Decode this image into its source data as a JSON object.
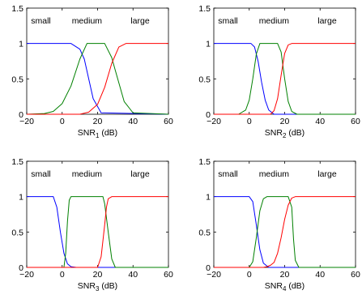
{
  "figure": {
    "background": "#ffffff",
    "curve_colors": {
      "small": "#0000ff",
      "medium": "#008000",
      "large": "#ff0000"
    }
  },
  "chart_data": [
    {
      "type": "line",
      "xlabel": {
        "base": "SNR",
        "sub": "1",
        "unit": " (dB)"
      },
      "ylabel": "",
      "xlim": [
        -20,
        60
      ],
      "ylim": [
        0,
        1.5
      ],
      "xticks": [
        -20,
        0,
        20,
        40,
        60
      ],
      "xtick_labels": [
        "−20",
        "0",
        "20",
        "40",
        "60"
      ],
      "yticks": [
        0,
        0.5,
        1,
        1.5
      ],
      "ytick_labels": [
        "0",
        "0.5",
        "1",
        "1.5"
      ],
      "grid": false,
      "class_labels": [
        {
          "text": "small",
          "x": -12
        },
        {
          "text": "medium",
          "x": 14
        },
        {
          "text": "large",
          "x": 44
        }
      ],
      "series": [
        {
          "key": "small",
          "x": [
            -20,
            5,
            10,
            12.5,
            15,
            17.5,
            22,
            60
          ],
          "y": [
            1,
            1,
            0.92,
            0.78,
            0.5,
            0.22,
            0.02,
            0
          ]
        },
        {
          "key": "medium",
          "x": [
            -20,
            -10,
            -5,
            0,
            5,
            10,
            14,
            20,
            24,
            28,
            30,
            35,
            40,
            60
          ],
          "y": [
            0,
            0.01,
            0.04,
            0.15,
            0.4,
            0.78,
            1,
            1,
            1,
            0.8,
            0.62,
            0.18,
            0.02,
            0
          ]
        },
        {
          "key": "large",
          "x": [
            -20,
            10,
            15,
            20,
            24,
            28,
            32,
            36,
            60
          ],
          "y": [
            0,
            0,
            0.03,
            0.14,
            0.38,
            0.72,
            0.95,
            1,
            1
          ]
        }
      ]
    },
    {
      "type": "line",
      "xlabel": {
        "base": "SNR",
        "sub": "2",
        "unit": " (dB)"
      },
      "ylabel": "",
      "xlim": [
        -20,
        60
      ],
      "ylim": [
        0,
        1.5
      ],
      "xticks": [
        -20,
        0,
        20,
        40,
        60
      ],
      "xtick_labels": [
        "−20",
        "0",
        "20",
        "40",
        "60"
      ],
      "yticks": [
        0,
        0.5,
        1,
        1.5
      ],
      "ytick_labels": [
        "0",
        "0.5",
        "1",
        "1.5"
      ],
      "grid": false,
      "class_labels": [
        {
          "text": "small",
          "x": -12
        },
        {
          "text": "medium",
          "x": 14
        },
        {
          "text": "large",
          "x": 44
        }
      ],
      "series": [
        {
          "key": "small",
          "x": [
            -20,
            1,
            3,
            5,
            7,
            9,
            11,
            14,
            60
          ],
          "y": [
            1,
            1,
            0.95,
            0.75,
            0.45,
            0.2,
            0.06,
            0,
            0
          ]
        },
        {
          "key": "medium",
          "x": [
            -20,
            -6,
            -2,
            0,
            2,
            4,
            6,
            16,
            18,
            20,
            22,
            24,
            27,
            60
          ],
          "y": [
            0,
            0,
            0.06,
            0.2,
            0.5,
            0.85,
            1,
            1,
            0.88,
            0.5,
            0.18,
            0.04,
            0,
            0
          ]
        },
        {
          "key": "large",
          "x": [
            -20,
            12,
            14,
            16,
            18,
            20,
            22,
            24,
            60
          ],
          "y": [
            0,
            0,
            0.05,
            0.22,
            0.55,
            0.86,
            0.98,
            1,
            1
          ]
        }
      ]
    },
    {
      "type": "line",
      "xlabel": {
        "base": "SNR",
        "sub": "3",
        "unit": " (dB)"
      },
      "ylabel": "",
      "xlim": [
        -20,
        60
      ],
      "ylim": [
        0,
        1.5
      ],
      "xticks": [
        -20,
        0,
        20,
        40,
        60
      ],
      "xtick_labels": [
        "−20",
        "0",
        "20",
        "40",
        "60"
      ],
      "yticks": [
        0,
        0.5,
        1,
        1.5
      ],
      "ytick_labels": [
        "0",
        "0.5",
        "1",
        "1.5"
      ],
      "grid": false,
      "class_labels": [
        {
          "text": "small",
          "x": -12
        },
        {
          "text": "medium",
          "x": 14
        },
        {
          "text": "large",
          "x": 44
        }
      ],
      "series": [
        {
          "key": "small",
          "x": [
            -20,
            -5,
            -3,
            -1,
            0,
            1,
            3,
            5,
            8,
            60
          ],
          "y": [
            1,
            1,
            0.85,
            0.5,
            0.35,
            0.2,
            0.05,
            0.01,
            0,
            0
          ]
        },
        {
          "key": "medium",
          "x": [
            -20,
            1,
            2,
            3,
            4,
            5,
            23,
            24,
            26,
            28,
            30,
            60
          ],
          "y": [
            0,
            0,
            0.2,
            0.65,
            0.95,
            1,
            1,
            0.9,
            0.5,
            0.12,
            0,
            0
          ]
        },
        {
          "key": "large",
          "x": [
            -20,
            20,
            22,
            24,
            25,
            26,
            28,
            60
          ],
          "y": [
            0,
            0,
            0.15,
            0.6,
            0.85,
            0.97,
            1,
            1
          ]
        }
      ]
    },
    {
      "type": "line",
      "xlabel": {
        "base": "SNR",
        "sub": "4",
        "unit": " (dB)"
      },
      "ylabel": "",
      "xlim": [
        -20,
        60
      ],
      "ylim": [
        0,
        1.5
      ],
      "xticks": [
        -20,
        0,
        20,
        40,
        60
      ],
      "xtick_labels": [
        "−20",
        "0",
        "20",
        "40",
        "60"
      ],
      "yticks": [
        0,
        0.5,
        1,
        1.5
      ],
      "ytick_labels": [
        "0",
        "0.5",
        "1",
        "1.5"
      ],
      "grid": false,
      "class_labels": [
        {
          "text": "small",
          "x": -12
        },
        {
          "text": "medium",
          "x": 14
        },
        {
          "text": "large",
          "x": 44
        }
      ],
      "series": [
        {
          "key": "small",
          "x": [
            -20,
            0,
            2,
            4,
            6,
            8,
            11,
            60
          ],
          "y": [
            1,
            1,
            0.93,
            0.6,
            0.25,
            0.06,
            0,
            0
          ]
        },
        {
          "key": "medium",
          "x": [
            -20,
            0,
            2,
            4,
            6,
            8,
            10,
            22,
            24,
            25,
            26,
            28,
            60
          ],
          "y": [
            0,
            0,
            0.08,
            0.42,
            0.8,
            0.97,
            1,
            1,
            0.85,
            0.4,
            0.1,
            0,
            0
          ]
        },
        {
          "key": "large",
          "x": [
            -20,
            8,
            10,
            12,
            14,
            16,
            18,
            20,
            22,
            24,
            26,
            60
          ],
          "y": [
            0,
            0,
            0.01,
            0.03,
            0.07,
            0.2,
            0.42,
            0.68,
            0.88,
            0.98,
            1,
            1
          ]
        }
      ]
    }
  ]
}
